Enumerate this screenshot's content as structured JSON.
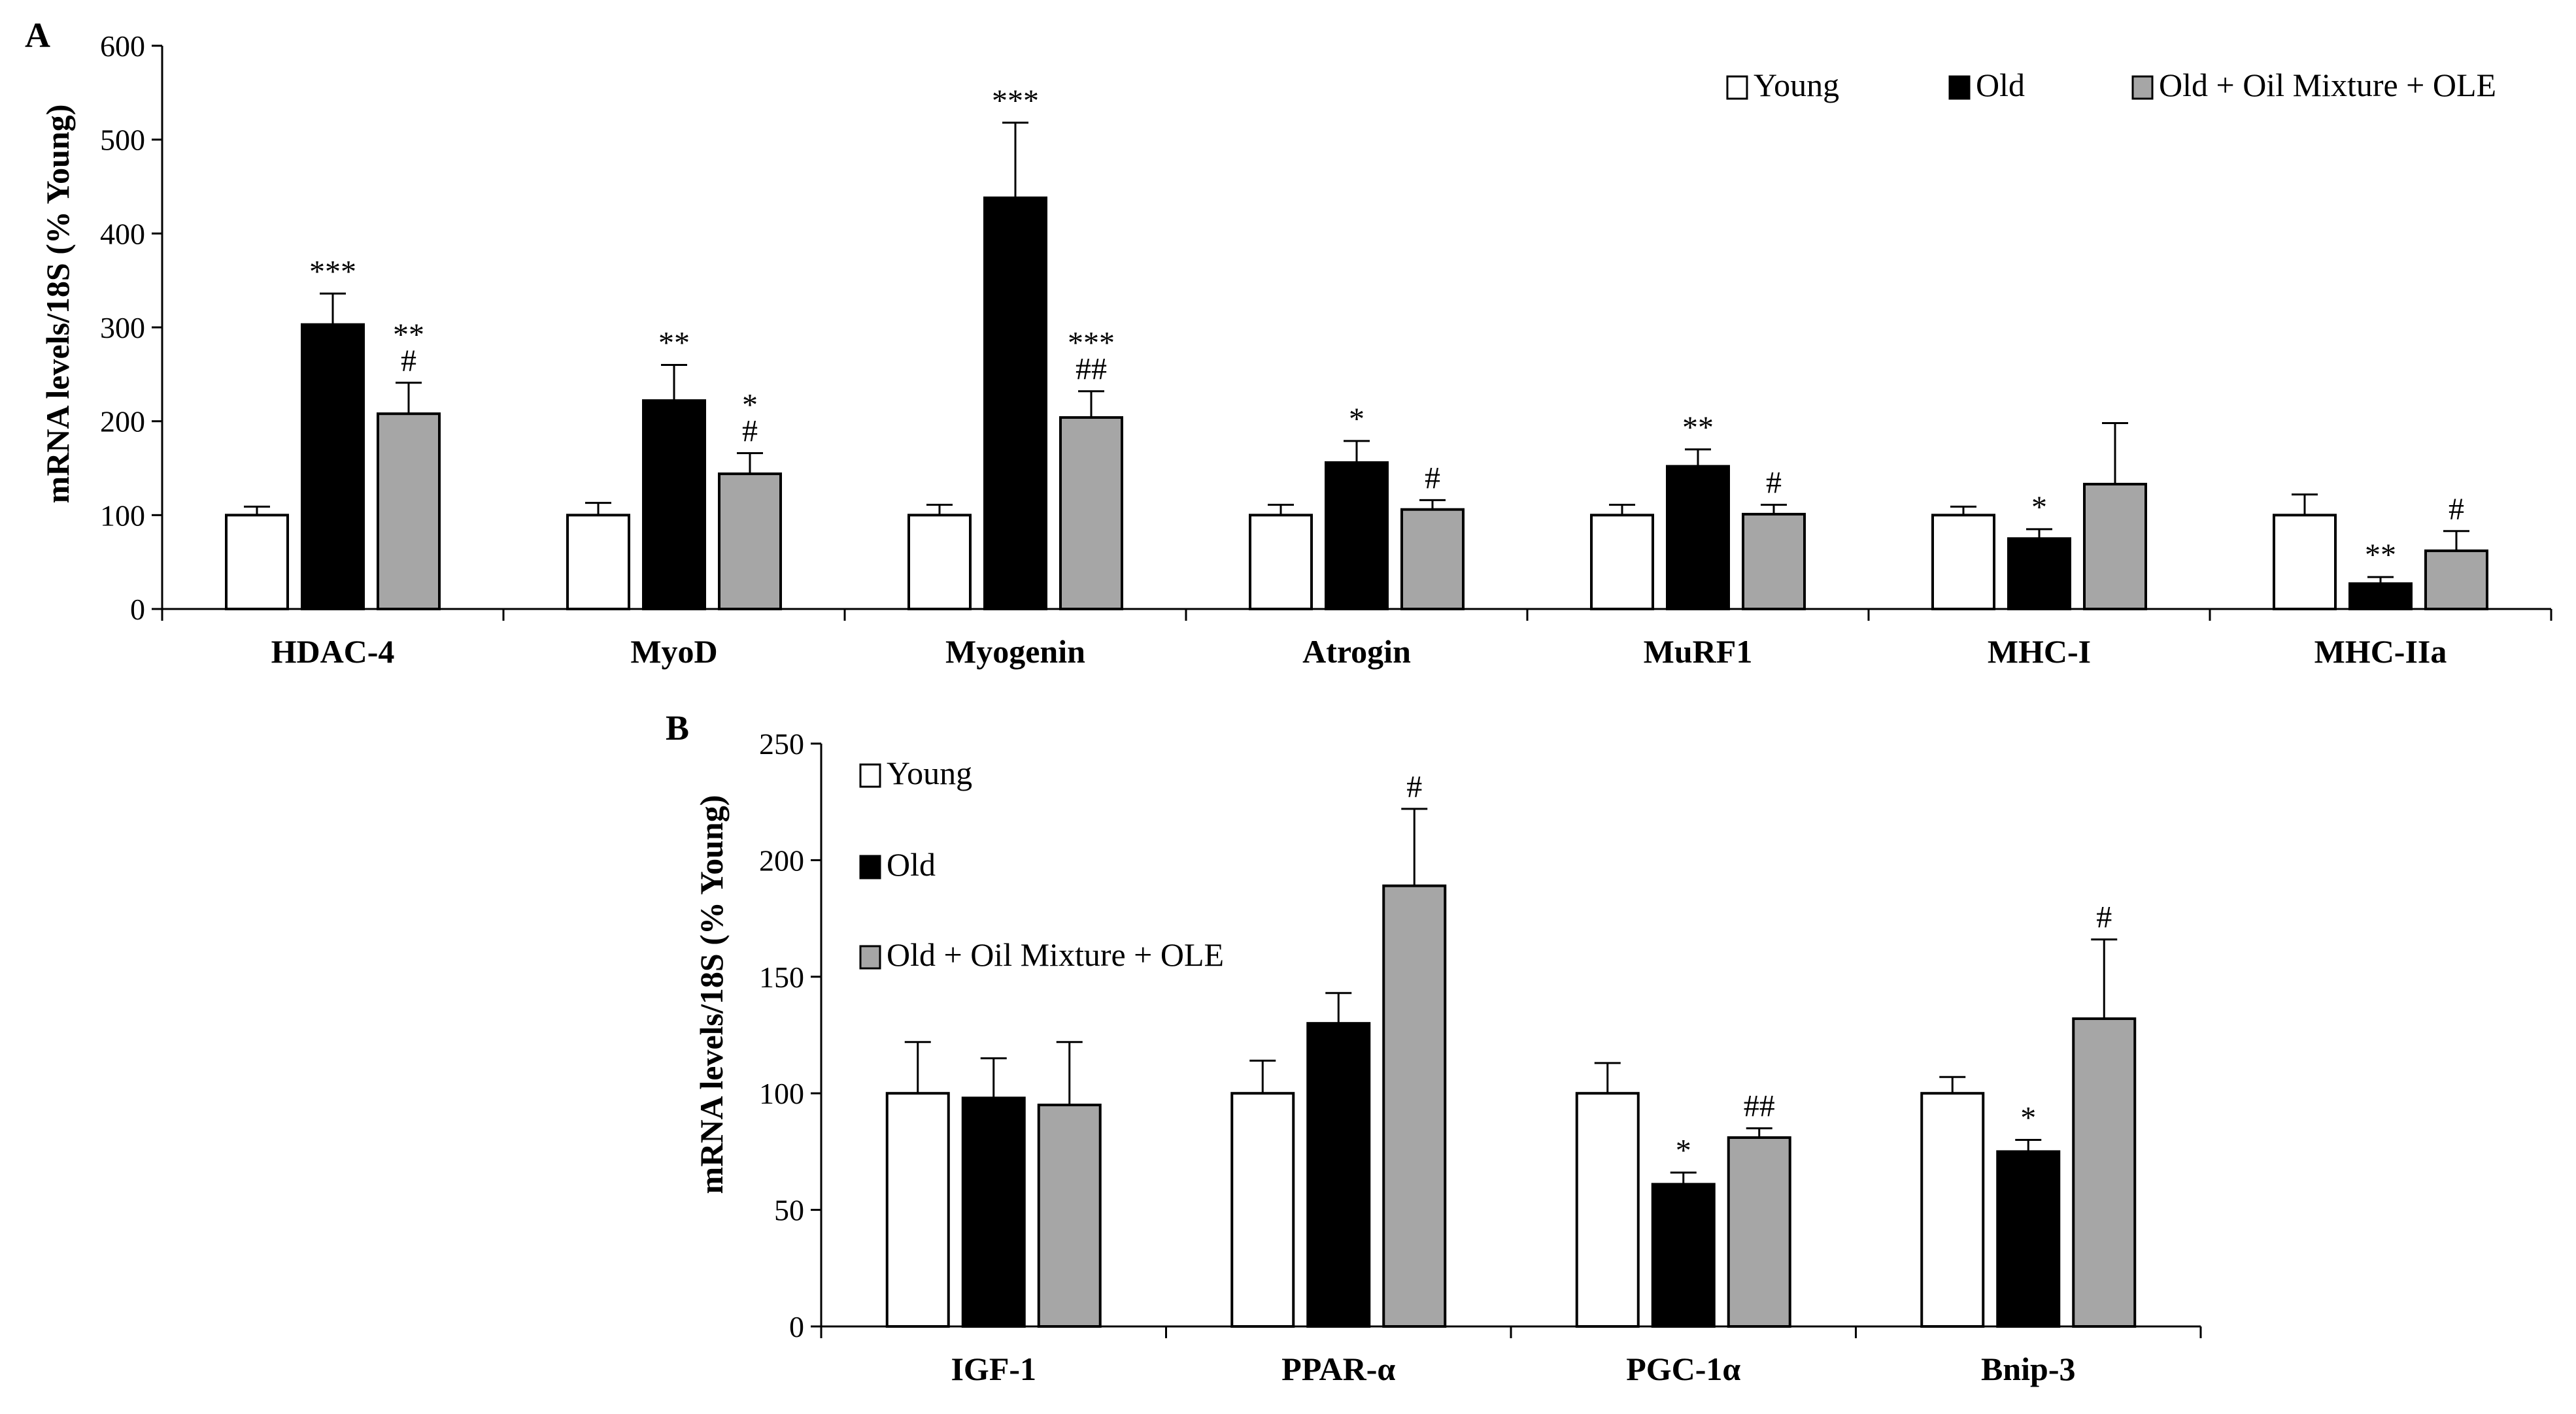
{
  "colors": {
    "young": "#ffffff",
    "old": "#000000",
    "treated": "#a6a6a6",
    "stroke": "#000000"
  },
  "chart_data": [
    {
      "type": "bar",
      "panel": "A",
      "ylabel": "mRNA levels/18S (% Young)",
      "ylim": [
        0,
        600
      ],
      "yticks": [
        0,
        100,
        200,
        300,
        400,
        500,
        600
      ],
      "legend_position": "top-right",
      "categories": [
        "HDAC-4",
        "MyoD",
        "Myogenin",
        "Atrogin",
        "MuRF1",
        "MHC-I",
        "MHC-IIa"
      ],
      "series": [
        {
          "name": "Young",
          "values": [
            100,
            100,
            100,
            100,
            100,
            100,
            100
          ],
          "errors": [
            9,
            13,
            11,
            11,
            11,
            9,
            22
          ]
        },
        {
          "name": "Old",
          "values": [
            303,
            222,
            438,
            156,
            152,
            75,
            27
          ],
          "errors": [
            33,
            38,
            80,
            23,
            18,
            10,
            7
          ]
        },
        {
          "name": "Old + Oil Mixture + OLE",
          "values": [
            208,
            144,
            204,
            106,
            101,
            133,
            62
          ],
          "errors": [
            33,
            22,
            28,
            10,
            10,
            65,
            21
          ]
        }
      ],
      "annotations": [
        [
          "",
          "***",
          "**\n#"
        ],
        [
          "",
          "**",
          "*\n#"
        ],
        [
          "",
          "***",
          "***\n##"
        ],
        [
          "",
          "*",
          "#"
        ],
        [
          "",
          "**",
          "#"
        ],
        [
          "",
          "*",
          ""
        ],
        [
          "",
          "**",
          "#"
        ]
      ]
    },
    {
      "type": "bar",
      "panel": "B",
      "ylabel": "mRNA levels/18S (% Young)",
      "ylim": [
        0,
        250
      ],
      "yticks": [
        0,
        50,
        100,
        150,
        200,
        250
      ],
      "legend_position": "top-left",
      "categories": [
        "IGF-1",
        "PPAR-α",
        "PGC-1α",
        "Bnip-3"
      ],
      "series": [
        {
          "name": "Young",
          "values": [
            100,
            100,
            100,
            100
          ],
          "errors": [
            22,
            14,
            13,
            7
          ]
        },
        {
          "name": "Old",
          "values": [
            98,
            130,
            61,
            75
          ],
          "errors": [
            17,
            13,
            5,
            5
          ]
        },
        {
          "name": "Old + Oil Mixture + OLE",
          "values": [
            95,
            189,
            81,
            132
          ],
          "errors": [
            27,
            33,
            4,
            34
          ]
        }
      ],
      "annotations": [
        [
          "",
          "",
          ""
        ],
        [
          "",
          "",
          "#"
        ],
        [
          "",
          "*",
          "##"
        ],
        [
          "",
          "*",
          "#"
        ]
      ]
    }
  ]
}
